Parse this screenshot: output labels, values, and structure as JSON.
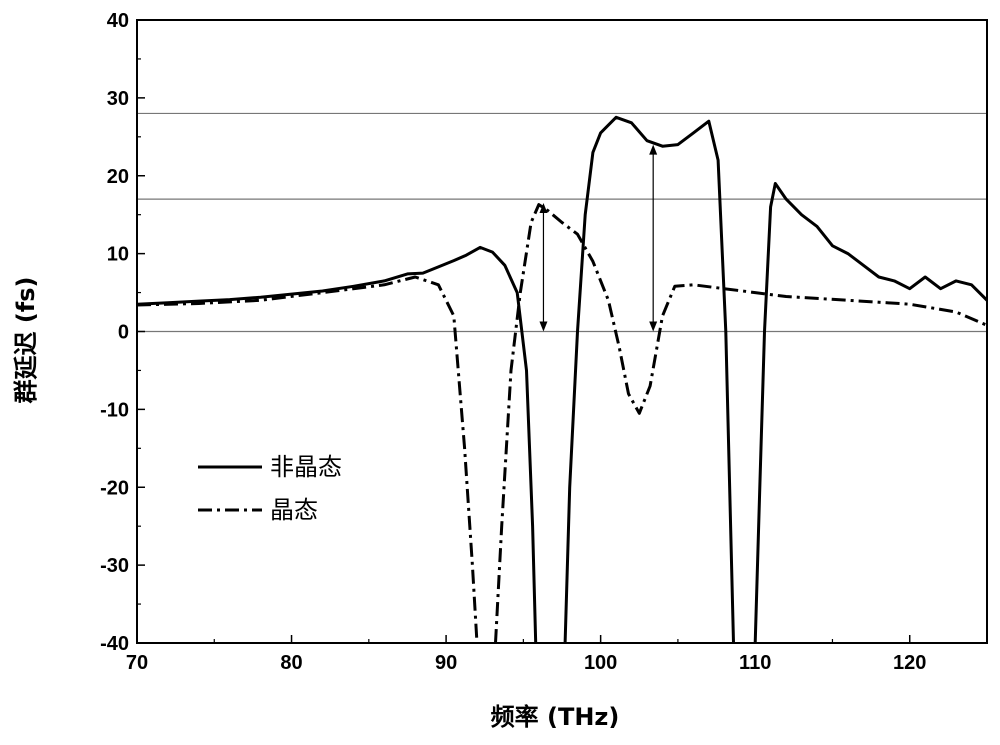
{
  "chart_data": {
    "type": "line",
    "xlabel": "频率 (THz)",
    "ylabel": "群延迟 (fs)",
    "xlim": [
      70,
      125
    ],
    "ylim": [
      -40,
      40
    ],
    "xticks": [
      70,
      80,
      90,
      100,
      110,
      120
    ],
    "yticks": [
      -40,
      -30,
      -20,
      -10,
      0,
      10,
      20,
      30,
      40
    ],
    "grid": false,
    "legend_position": "left-middle",
    "reference_lines_y": [
      0,
      17,
      28
    ],
    "annotations": [
      {
        "type": "double-arrow",
        "x": 96.3,
        "y_from": 0,
        "y_to": 16.5
      },
      {
        "type": "double-arrow",
        "x": 103.4,
        "y_from": 0,
        "y_to": 24
      }
    ],
    "series": [
      {
        "name": "非晶态",
        "style": "solid",
        "color": "#000000",
        "points": [
          [
            70,
            3.5
          ],
          [
            72,
            3.7
          ],
          [
            74,
            3.9
          ],
          [
            76,
            4.1
          ],
          [
            78,
            4.4
          ],
          [
            80,
            4.8
          ],
          [
            82,
            5.2
          ],
          [
            84,
            5.8
          ],
          [
            86,
            6.5
          ],
          [
            87.5,
            7.4
          ],
          [
            88.5,
            7.5
          ],
          [
            89.5,
            8.3
          ],
          [
            90.5,
            9.1
          ],
          [
            91.3,
            9.8
          ],
          [
            92.2,
            10.8
          ],
          [
            93,
            10.2
          ],
          [
            93.8,
            8.5
          ],
          [
            94.6,
            5
          ],
          [
            95.2,
            -5
          ],
          [
            95.6,
            -25
          ],
          [
            95.8,
            -40
          ]
        ],
        "points2": [
          [
            97.7,
            -40
          ],
          [
            98.0,
            -20
          ],
          [
            98.5,
            0
          ],
          [
            99.0,
            15
          ],
          [
            99.5,
            23
          ],
          [
            100.0,
            25.5
          ],
          [
            101.0,
            27.5
          ],
          [
            102.0,
            26.8
          ],
          [
            103.0,
            24.5
          ],
          [
            104.0,
            23.8
          ],
          [
            105.0,
            24
          ],
          [
            106.0,
            25.5
          ],
          [
            107.0,
            27
          ],
          [
            107.6,
            22
          ],
          [
            108.1,
            0
          ],
          [
            108.6,
            -40
          ]
        ],
        "points3": [
          [
            110.0,
            -40
          ],
          [
            110.3,
            -20
          ],
          [
            110.6,
            0
          ],
          [
            111.0,
            16
          ],
          [
            111.3,
            19
          ],
          [
            112.0,
            17
          ],
          [
            113.0,
            15
          ],
          [
            114.0,
            13.5
          ],
          [
            115.0,
            11
          ],
          [
            116.0,
            10
          ],
          [
            117.0,
            8.5
          ],
          [
            118.0,
            7
          ],
          [
            119.0,
            6.5
          ],
          [
            120.0,
            5.5
          ],
          [
            121.0,
            7
          ],
          [
            122.0,
            5.5
          ],
          [
            123.0,
            6.5
          ],
          [
            124.0,
            6
          ],
          [
            125.0,
            4
          ]
        ]
      },
      {
        "name": "晶态",
        "style": "dashdot",
        "color": "#000000",
        "points": [
          [
            70,
            3.4
          ],
          [
            74,
            3.6
          ],
          [
            78,
            4.0
          ],
          [
            82,
            5.0
          ],
          [
            86,
            6.0
          ],
          [
            88,
            7.0
          ],
          [
            89.5,
            6.0
          ],
          [
            90.5,
            2
          ],
          [
            91.2,
            -15
          ],
          [
            91.7,
            -30
          ],
          [
            92.0,
            -40
          ]
        ],
        "points2": [
          [
            93.2,
            -40
          ],
          [
            93.6,
            -25
          ],
          [
            94.2,
            -5
          ],
          [
            94.8,
            5
          ],
          [
            95.5,
            14
          ],
          [
            96.0,
            16.3
          ],
          [
            96.6,
            15.5
          ],
          [
            97.5,
            14
          ],
          [
            98.5,
            12.5
          ],
          [
            99.5,
            9
          ],
          [
            100.5,
            4
          ],
          [
            101.2,
            -2
          ],
          [
            101.8,
            -8
          ],
          [
            102.5,
            -10.5
          ],
          [
            103.2,
            -7
          ],
          [
            104.0,
            2
          ],
          [
            104.8,
            5.8
          ],
          [
            106.0,
            6
          ],
          [
            108.0,
            5.5
          ],
          [
            110.0,
            5
          ],
          [
            112.0,
            4.5
          ],
          [
            116.0,
            4
          ],
          [
            120.0,
            3.5
          ],
          [
            123.0,
            2.5
          ],
          [
            125.0,
            0.8
          ]
        ]
      }
    ]
  }
}
